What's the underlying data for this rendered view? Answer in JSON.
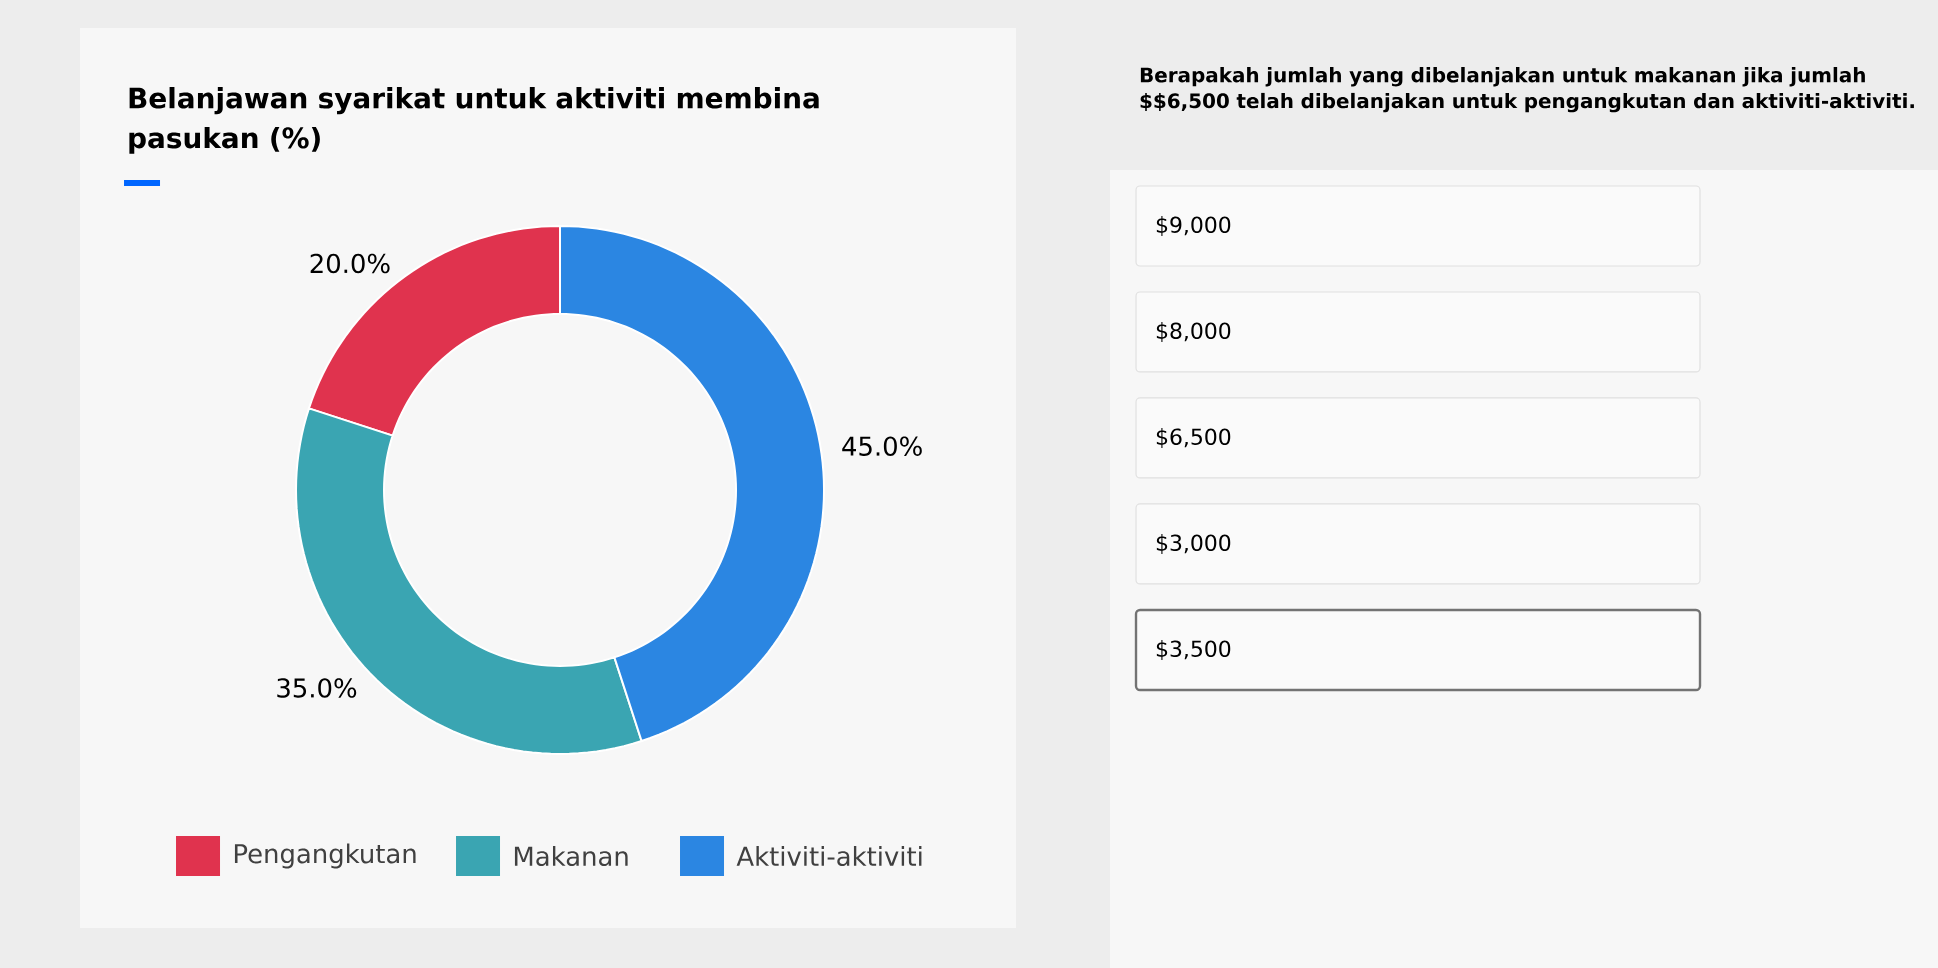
{
  "chart_data": {
    "type": "donut",
    "title": "Belanjawan syarikat untuk aktiviti membina pasukan (%)",
    "categories": [
      "Pengangkutan",
      "Makanan",
      "Aktiviti-aktiviti"
    ],
    "values": [
      20.0,
      35.0,
      45.0
    ],
    "value_labels": [
      "20.0%",
      "35.0%",
      "45.0%"
    ],
    "colors": [
      "#e0334e",
      "#3aa5b2",
      "#2b86e2"
    ],
    "legend": "bottom",
    "annotations": [
      "Berapakah jumlah yang dibelanjakan untuk makanan jika jumlah $$6,500 telah dibelanjakan untuk pengangkutan dan aktiviti-aktiviti.",
      "$9,000",
      "$8,000",
      "$6,500",
      "$3,000",
      "$3,500"
    ]
  }
}
